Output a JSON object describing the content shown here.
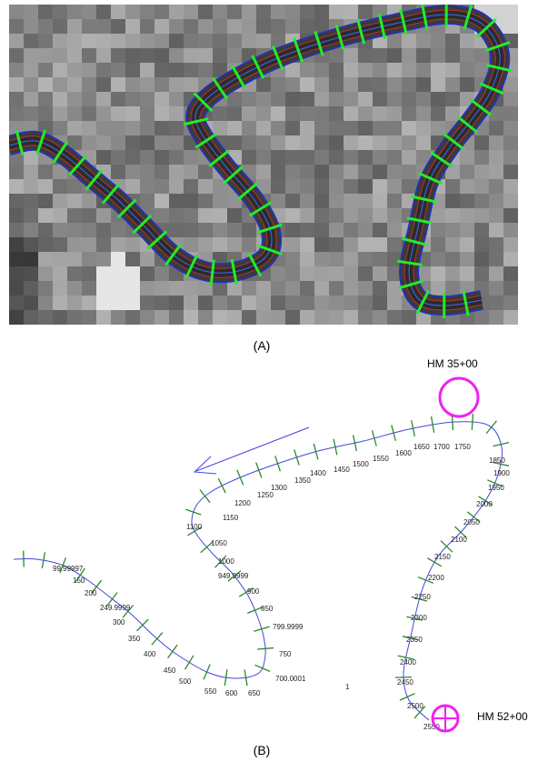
{
  "figure": {
    "panel_a": {
      "label": "(A)"
    },
    "panel_b": {
      "label": "(B)",
      "markers": [
        {
          "label": "HM 35+00"
        },
        {
          "label": "HM 52+00"
        }
      ],
      "note": "1",
      "stations": [
        "99.99997",
        "150",
        "200",
        "249.9999",
        "300",
        "350",
        "400",
        "450",
        "500",
        "550",
        "600",
        "650",
        "700.0001",
        "750",
        "799.9999",
        "850",
        "900",
        "949.9999",
        "1000",
        "1050",
        "1100",
        "1150",
        "1200",
        "1250",
        "1300",
        "1350",
        "1400",
        "1450",
        "1500",
        "1550",
        "1600",
        "1650",
        "1700",
        "1750",
        "1850",
        "1900",
        "1950",
        "2000",
        "2050",
        "2100",
        "2150",
        "2200",
        "2250",
        "2300",
        "2350",
        "2400",
        "2450",
        "2500",
        "2550"
      ]
    }
  }
}
